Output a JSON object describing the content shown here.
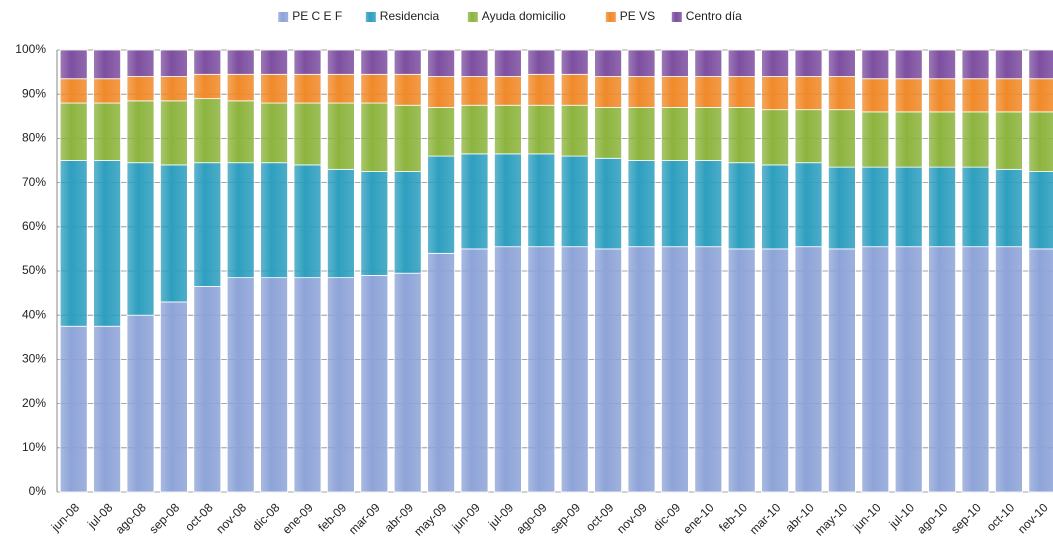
{
  "chart_data": {
    "type": "stacked_bar_100",
    "categories": [
      "jun-08",
      "jul-08",
      "ago-08",
      "sep-08",
      "oct-08",
      "nov-08",
      "dic-08",
      "ene-09",
      "feb-09",
      "mar-09",
      "abr-09",
      "may-09",
      "jun-09",
      "jul-09",
      "ago-09",
      "sep-09",
      "oct-09",
      "nov-09",
      "dic-09",
      "ene-10",
      "feb-10",
      "mar-10",
      "abr-10",
      "may-10",
      "jun-10",
      "jul-10",
      "ago-10",
      "sep-10",
      "oct-10",
      "nov-10"
    ],
    "series": [
      {
        "name": "PE C E F",
        "color": "#8ea4d8",
        "values": [
          37.5,
          37.5,
          40,
          43,
          46.5,
          48.5,
          48.5,
          48.5,
          48.5,
          49,
          49.5,
          54,
          55,
          55.5,
          55.5,
          55.5,
          55,
          55.5,
          55.5,
          55.5,
          55,
          55,
          55.5,
          55,
          55.5,
          55.5,
          55.5,
          55.5,
          55.5,
          55
        ]
      },
      {
        "name": "Residencia",
        "color": "#2e9fbf",
        "values": [
          37.5,
          37.5,
          34.5,
          31,
          28,
          26,
          26,
          25.5,
          24.5,
          23.5,
          23,
          22,
          21.5,
          21,
          21,
          20.5,
          20.5,
          19.5,
          19.5,
          19.5,
          19.5,
          19,
          19,
          18.5,
          18,
          18,
          18,
          18,
          17.5,
          17.5
        ]
      },
      {
        "name": "Ayuda domicilio",
        "color": "#8db43e",
        "values": [
          13,
          13,
          14,
          14.5,
          14.5,
          14,
          13.5,
          14,
          15,
          15.5,
          15,
          11,
          11,
          11,
          11,
          11.5,
          11.5,
          12,
          12,
          12,
          12.5,
          12.5,
          12,
          13,
          12.5,
          12.5,
          12.5,
          12.5,
          13,
          13.5
        ]
      },
      {
        "name": "PE VS",
        "color": "#f08a2a",
        "values": [
          5.5,
          5.5,
          5.5,
          5.5,
          5.5,
          6,
          6.5,
          6.5,
          6.5,
          6.5,
          7,
          7,
          6.5,
          6.5,
          7,
          7,
          7,
          7,
          7,
          7,
          7,
          7.5,
          7.5,
          7.5,
          7.5,
          7.5,
          7.5,
          7.5,
          7.5,
          7.5
        ]
      },
      {
        "name": "Centro día",
        "color": "#7d4fa0",
        "values": [
          6.5,
          6.5,
          6,
          6,
          5.5,
          5.5,
          5.5,
          5.5,
          5.5,
          5.5,
          5.5,
          6,
          6,
          6,
          5.5,
          5.5,
          6,
          6,
          6,
          6,
          6,
          6,
          6,
          6,
          6.5,
          6.5,
          6.5,
          6.5,
          6.5,
          6.5
        ]
      }
    ],
    "ylim": [
      0,
      100
    ],
    "yticks": [
      {
        "value": 0,
        "label": "0%"
      },
      {
        "value": 10,
        "label": "10%"
      },
      {
        "value": 20,
        "label": "20%"
      },
      {
        "value": 30,
        "label": "30%"
      },
      {
        "value": 40,
        "label": "40%"
      },
      {
        "value": 50,
        "label": "50%"
      },
      {
        "value": 60,
        "label": "60%"
      },
      {
        "value": 70,
        "label": "70%"
      },
      {
        "value": 80,
        "label": "80%"
      },
      {
        "value": 90,
        "label": "90%"
      },
      {
        "value": 100,
        "label": "100%"
      }
    ],
    "grid": true,
    "legend": "top"
  }
}
